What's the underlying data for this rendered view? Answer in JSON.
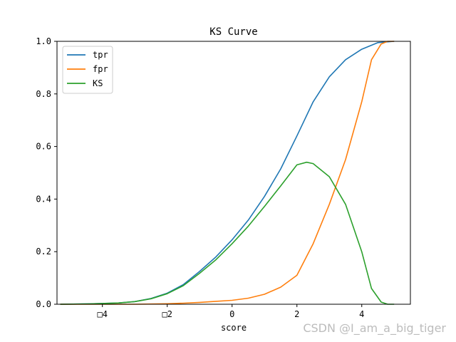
{
  "chart_data": {
    "type": "line",
    "title": "KS Curve",
    "xlabel": "score",
    "ylabel": "",
    "xlim": [
      -5.4,
      5.5
    ],
    "ylim": [
      0,
      1.0
    ],
    "xticks": [
      -4,
      -2,
      0,
      2,
      4
    ],
    "xtick_labels": [
      "□4",
      "□2",
      "0",
      "2",
      "4"
    ],
    "yticks": [
      0,
      0.2,
      0.4,
      0.6,
      0.8,
      1.0
    ],
    "ytick_labels": [
      "0.0",
      "0.2",
      "0.4",
      "0.6",
      "0.8",
      "1.0"
    ],
    "legend_position": "top-left",
    "series": [
      {
        "name": "tpr",
        "color": "#1f77b4",
        "x": [
          -5.3,
          -4.5,
          -4.0,
          -3.5,
          -3.0,
          -2.5,
          -2.0,
          -1.5,
          -1.0,
          -0.5,
          0.0,
          0.5,
          1.0,
          1.5,
          2.0,
          2.5,
          3.0,
          3.5,
          4.0,
          4.5,
          5.0
        ],
        "y": [
          0.0,
          0.001,
          0.003,
          0.005,
          0.01,
          0.022,
          0.042,
          0.075,
          0.125,
          0.18,
          0.245,
          0.32,
          0.41,
          0.515,
          0.64,
          0.77,
          0.865,
          0.93,
          0.97,
          0.995,
          1.0
        ]
      },
      {
        "name": "fpr",
        "color": "#ff7f0e",
        "x": [
          -5.3,
          -4.0,
          -3.0,
          -2.0,
          -1.5,
          -1.0,
          -0.5,
          0.0,
          0.5,
          1.0,
          1.5,
          2.0,
          2.5,
          3.0,
          3.5,
          4.0,
          4.3,
          4.6,
          4.8,
          5.0
        ],
        "y": [
          0.0,
          0.0,
          0.0,
          0.002,
          0.004,
          0.007,
          0.011,
          0.015,
          0.023,
          0.038,
          0.065,
          0.11,
          0.23,
          0.38,
          0.55,
          0.77,
          0.93,
          0.99,
          1.0,
          1.0
        ]
      },
      {
        "name": "KS",
        "color": "#2ca02c",
        "x": [
          -5.3,
          -4.5,
          -4.0,
          -3.5,
          -3.0,
          -2.5,
          -2.0,
          -1.5,
          -1.0,
          -0.5,
          0.0,
          0.5,
          1.0,
          1.5,
          2.0,
          2.3,
          2.5,
          3.0,
          3.5,
          4.0,
          4.3,
          4.6,
          4.8,
          5.0
        ],
        "y": [
          0.0,
          0.001,
          0.003,
          0.005,
          0.01,
          0.021,
          0.04,
          0.071,
          0.118,
          0.169,
          0.23,
          0.297,
          0.372,
          0.45,
          0.53,
          0.54,
          0.535,
          0.485,
          0.38,
          0.2,
          0.06,
          0.008,
          0.0,
          0.0
        ]
      }
    ]
  },
  "watermark": "CSDN @I_am_a_big_tiger"
}
